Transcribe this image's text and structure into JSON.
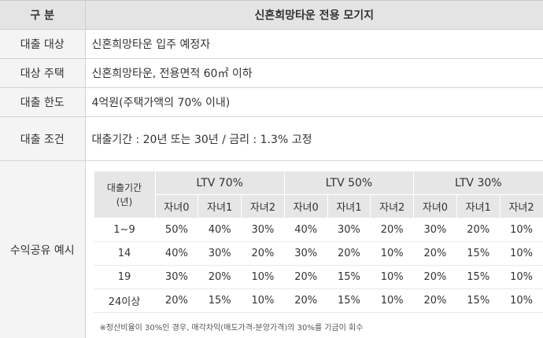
{
  "header": {
    "col1": "구 분",
    "col2": "신혼희망타운 전용 모기지"
  },
  "rows": [
    {
      "label": "대출 대상",
      "value": "신혼희망타운 입주 예정자"
    },
    {
      "label": "대상 주택",
      "value": "신혼희망타운, 전용면적 60㎡ 이하"
    },
    {
      "label": "대출 한도",
      "value": "4억원(주택가액의 70% 이내)"
    },
    {
      "label": "대출 조건",
      "value": "대출기간 : 20년 또는 30년 / 금리 : 1.3% 고정"
    }
  ],
  "example": {
    "label": "수익공유 예시",
    "period_header": [
      "대출기간",
      "(년)"
    ],
    "groups": [
      "LTV 70%",
      "LTV 50%",
      "LTV 30%"
    ],
    "subcols": [
      "자녀0",
      "자녀1",
      "자녀2"
    ],
    "table": [
      {
        "period": "1~9",
        "values": [
          "50%",
          "40%",
          "30%",
          "40%",
          "30%",
          "20%",
          "30%",
          "20%",
          "10%"
        ]
      },
      {
        "period": "14",
        "values": [
          "40%",
          "30%",
          "20%",
          "30%",
          "20%",
          "10%",
          "20%",
          "15%",
          "10%"
        ]
      },
      {
        "period": "19",
        "values": [
          "30%",
          "20%",
          "10%",
          "20%",
          "15%",
          "10%",
          "20%",
          "15%",
          "10%"
        ]
      },
      {
        "period": "24이상",
        "values": [
          "20%",
          "15%",
          "10%",
          "20%",
          "15%",
          "10%",
          "20%",
          "15%",
          "10%"
        ]
      }
    ],
    "note": "※정산비율이 30%인 경우, 매각차익(매도가격-분양가격)의 30%를 기금이 회수"
  }
}
